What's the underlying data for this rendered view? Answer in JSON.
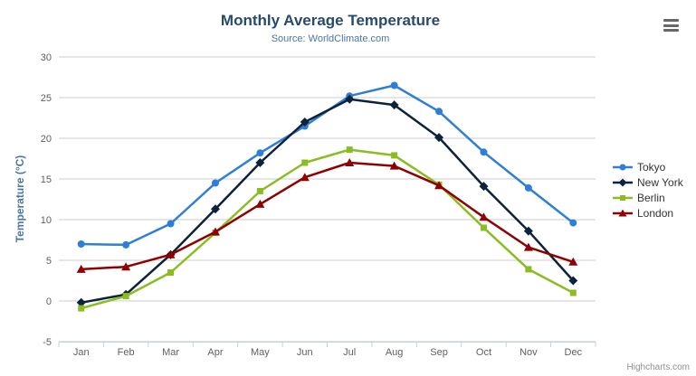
{
  "chart_data": {
    "type": "line",
    "title": "Monthly Average Temperature",
    "subtitle": "Source: WorldClimate.com",
    "xlabel": "",
    "ylabel": "Temperature (°C)",
    "ylim": [
      -5,
      30
    ],
    "yticks": [
      30,
      25,
      20,
      15,
      10,
      5,
      0,
      -5
    ],
    "grid": true,
    "legend_position": "right",
    "categories": [
      "Jan",
      "Feb",
      "Mar",
      "Apr",
      "May",
      "Jun",
      "Jul",
      "Aug",
      "Sep",
      "Oct",
      "Nov",
      "Dec"
    ],
    "series": [
      {
        "name": "Tokyo",
        "color": "#2f7ed8",
        "marker": "circle",
        "values": [
          7.0,
          6.9,
          9.5,
          14.5,
          18.2,
          21.5,
          25.2,
          26.5,
          23.3,
          18.3,
          13.9,
          9.6
        ]
      },
      {
        "name": "New York",
        "color": "#0d233a",
        "marker": "diamond",
        "values": [
          -0.2,
          0.8,
          5.7,
          11.3,
          17.0,
          22.0,
          24.8,
          24.1,
          20.1,
          14.1,
          8.6,
          2.5
        ]
      },
      {
        "name": "Berlin",
        "color": "#8bbc21",
        "marker": "square",
        "values": [
          -0.9,
          0.6,
          3.5,
          8.4,
          13.5,
          17.0,
          18.6,
          17.9,
          14.3,
          9.0,
          3.9,
          1.0
        ]
      },
      {
        "name": "London",
        "color": "#910000",
        "marker": "triangle",
        "values": [
          3.9,
          4.2,
          5.7,
          8.5,
          11.9,
          15.2,
          17.0,
          16.6,
          14.2,
          10.3,
          6.6,
          4.8
        ]
      }
    ],
    "credit": "Highcharts.com"
  },
  "colors": {
    "title": "#274b6d",
    "subtitle": "#4d759e",
    "axis_title": "#4d759e",
    "axis_labels": "#606060",
    "grid": "#cccccc",
    "axis_line": "#c0d0e0",
    "legend_text": "#333333",
    "credit": "#909090",
    "menu_icon": "#666666"
  }
}
